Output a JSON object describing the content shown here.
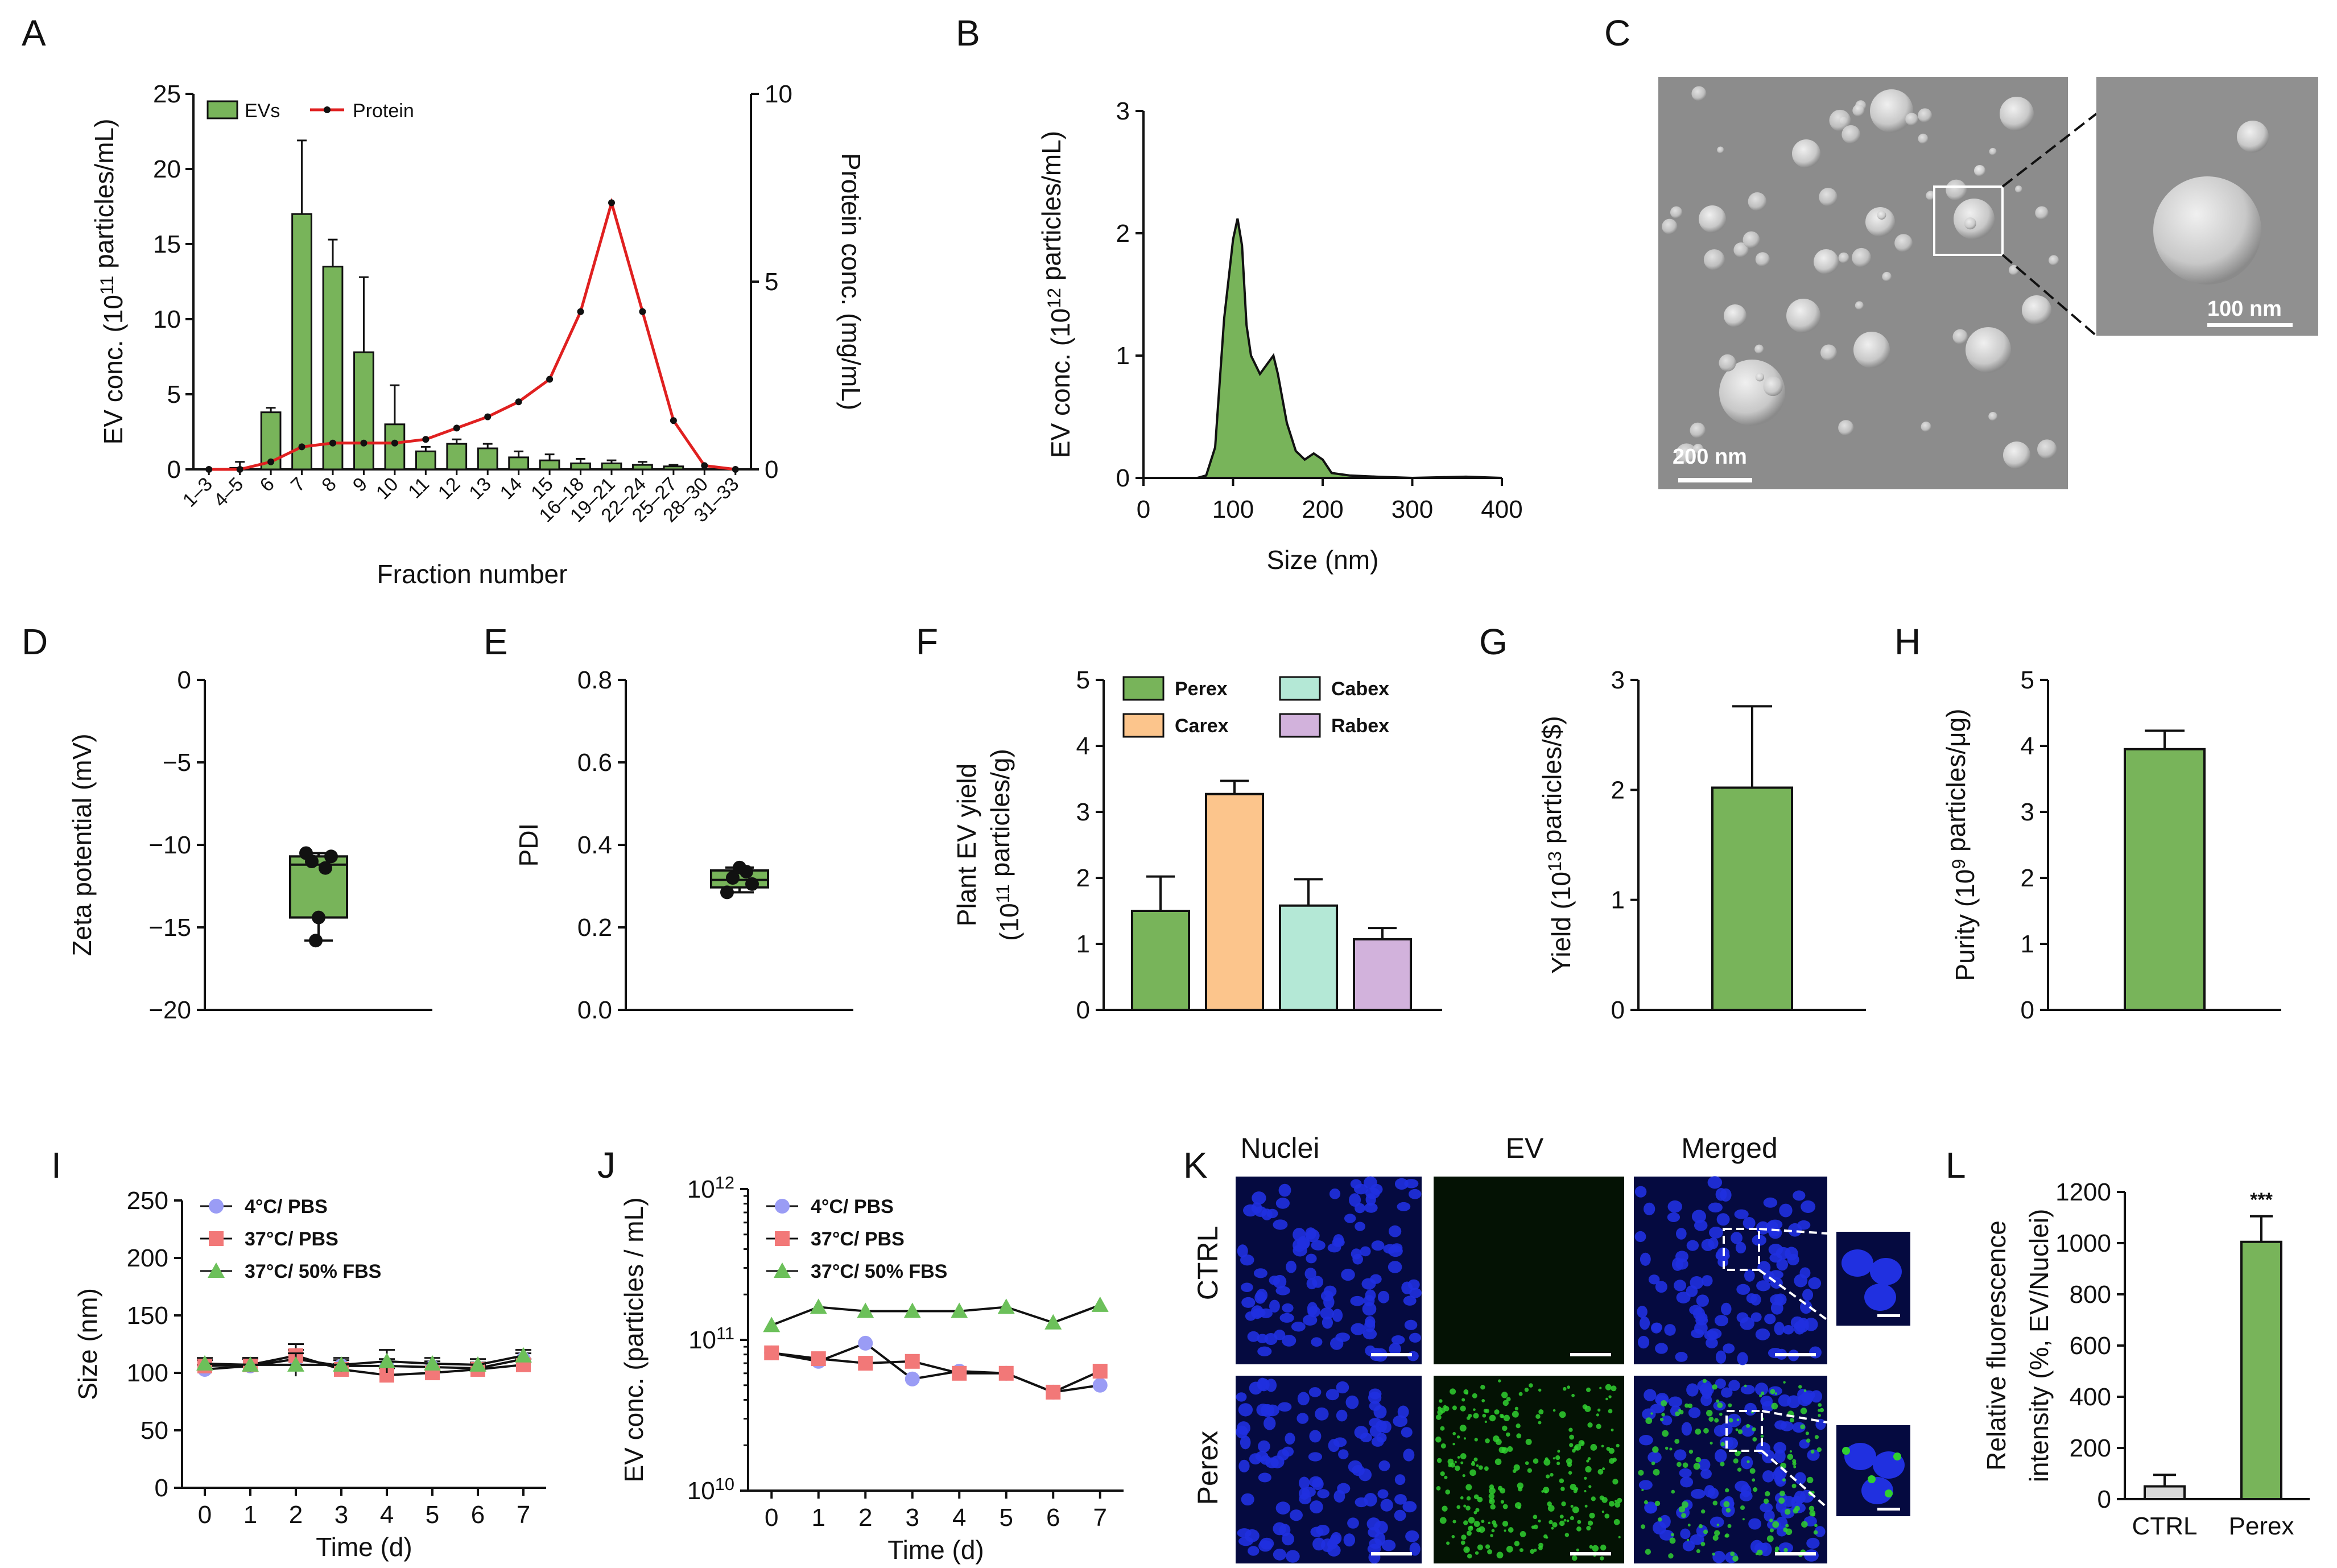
{
  "colors": {
    "green": "#78b45a",
    "green_dark": "#2a6a1a",
    "protein_red": "#e02020",
    "orange": "#fcc58c",
    "teal": "#b4e8d6",
    "purple": "#d2b2dc",
    "blue_marker": "#9a9cf5",
    "red_marker": "#f27878",
    "green_marker": "#6cc05a",
    "ctrl_bar": "#d8d8d8",
    "nuclei_blue": "#2030e0",
    "ev_green": "#30d030"
  },
  "panels": {
    "A": "A",
    "B": "B",
    "C": "C",
    "D": "D",
    "E": "E",
    "F": "F",
    "G": "G",
    "H": "H",
    "I": "I",
    "J": "J",
    "K": "K",
    "L": "L"
  },
  "chart_data": [
    {
      "panel": "A",
      "type": "bar",
      "xlabel": "Fraction number",
      "ylabel": "EV conc. (10^11 particles/mL)",
      "y2label": "Protein conc. (mg/mL)",
      "ylim": [
        0,
        25
      ],
      "y2lim": [
        0,
        10
      ],
      "yticks": [
        "0",
        "5",
        "10",
        "15",
        "20",
        "25"
      ],
      "y2ticks": [
        "0",
        "5",
        "10"
      ],
      "categories": [
        "1–3",
        "4–5",
        "6",
        "7",
        "8",
        "9",
        "10",
        "11",
        "12",
        "13",
        "14",
        "15",
        "16–18",
        "19–21",
        "22–24",
        "25–27",
        "28–30",
        "31–33"
      ],
      "legend": [
        "EVs",
        "Protein"
      ],
      "series": [
        {
          "name": "EVs",
          "type": "bar",
          "values": [
            0,
            0.1,
            3.8,
            17.0,
            13.5,
            7.8,
            3.0,
            1.2,
            1.7,
            1.4,
            0.8,
            0.6,
            0.4,
            0.4,
            0.3,
            0.2,
            0,
            0
          ],
          "errors": [
            0,
            0.4,
            0.3,
            4.9,
            1.8,
            5.0,
            2.6,
            0.3,
            0.3,
            0.3,
            0.4,
            0.4,
            0.3,
            0.2,
            0.2,
            0.1,
            0,
            0
          ]
        },
        {
          "name": "Protein",
          "type": "line",
          "values": [
            0.0,
            0.0,
            0.2,
            0.6,
            0.7,
            0.7,
            0.7,
            0.8,
            1.1,
            1.4,
            1.8,
            2.4,
            4.2,
            7.1,
            4.2,
            1.3,
            0.1,
            0.0
          ]
        }
      ]
    },
    {
      "panel": "B",
      "type": "area",
      "xlabel": "Size (nm)",
      "ylabel": "EV conc. (10^12 particles/mL)",
      "xlim": [
        0,
        400
      ],
      "ylim": [
        0,
        3
      ],
      "xticks": [
        "0",
        "100",
        "200",
        "300",
        "400"
      ],
      "yticks": [
        "0",
        "1",
        "2",
        "3"
      ],
      "x": [
        60,
        70,
        80,
        90,
        100,
        105,
        110,
        115,
        120,
        130,
        140,
        145,
        150,
        160,
        170,
        180,
        190,
        200,
        210,
        230,
        260,
        300,
        360,
        400
      ],
      "y": [
        0,
        0.02,
        0.25,
        1.3,
        1.95,
        2.12,
        1.9,
        1.25,
        1.0,
        0.85,
        0.95,
        1.0,
        0.85,
        0.45,
        0.22,
        0.15,
        0.2,
        0.15,
        0.04,
        0.02,
        0.01,
        0.0,
        0.01,
        0.0
      ]
    },
    {
      "panel": "D",
      "type": "box",
      "ylabel": "Zeta potential (mV)",
      "ylim": [
        -20,
        0
      ],
      "yticks": [
        "0",
        "−5",
        "−10",
        "−15",
        "−20"
      ],
      "q1": -14.4,
      "median": -11.2,
      "q3": -10.7,
      "min": -15.8,
      "max": -10.5,
      "points": [
        -10.5,
        -10.7,
        -11.0,
        -11.4,
        -14.4,
        -15.8
      ]
    },
    {
      "panel": "E",
      "type": "box",
      "ylabel": "PDI",
      "ylim": [
        0,
        0.8
      ],
      "yticks": [
        "0.0",
        "0.2",
        "0.4",
        "0.6",
        "0.8"
      ],
      "q1": 0.297,
      "median": 0.315,
      "q3": 0.338,
      "min": 0.285,
      "max": 0.345,
      "points": [
        0.285,
        0.305,
        0.32,
        0.335,
        0.345
      ]
    },
    {
      "panel": "F",
      "type": "bar",
      "ylabel": "Plant EV yield",
      "ylabel2": "(10^11 particles/g)",
      "ylim": [
        0,
        5
      ],
      "yticks": [
        "0",
        "1",
        "2",
        "3",
        "4",
        "5"
      ],
      "categories": [
        "Perex",
        "Carex",
        "Cabex",
        "Rabex"
      ],
      "legend": [
        "Perex",
        "Carex",
        "Cabex",
        "Rabex"
      ],
      "values": [
        1.5,
        3.27,
        1.58,
        1.07
      ],
      "errors": [
        0.52,
        0.2,
        0.4,
        0.17
      ]
    },
    {
      "panel": "G",
      "type": "bar",
      "ylabel": "Yield (10^13 particles/$)",
      "ylim": [
        0,
        3
      ],
      "yticks": [
        "0",
        "1",
        "2",
        "3"
      ],
      "values": [
        2.02
      ],
      "errors": [
        0.74
      ]
    },
    {
      "panel": "H",
      "type": "bar",
      "ylabel": "Purity (10^9 particles/μg)",
      "ylim": [
        0,
        5
      ],
      "yticks": [
        "0",
        "1",
        "2",
        "3",
        "4",
        "5"
      ],
      "values": [
        3.95
      ],
      "errors": [
        0.28
      ]
    },
    {
      "panel": "I",
      "type": "line",
      "xlabel": "Time (d)",
      "ylabel": "Size (nm)",
      "xlim": [
        -0.5,
        7.5
      ],
      "ylim": [
        0,
        250
      ],
      "xticks": [
        "0",
        "1",
        "2",
        "3",
        "4",
        "5",
        "6",
        "7"
      ],
      "yticks": [
        "0",
        "50",
        "100",
        "150",
        "200",
        "250"
      ],
      "x": [
        0,
        1,
        2,
        3,
        4,
        5,
        6,
        7
      ],
      "series": [
        {
          "name": "4°C/ PBS",
          "values": [
            103,
            106,
            112,
            106,
            106,
            105,
            104,
            112
          ],
          "errors": [
            4,
            6,
            8,
            5,
            6,
            5,
            5,
            5
          ]
        },
        {
          "name": "37°C/ PBS",
          "values": [
            106,
            107,
            115,
            103,
            98,
            100,
            103,
            107
          ],
          "errors": [
            5,
            6,
            10,
            5,
            6,
            5,
            4,
            5
          ]
        },
        {
          "name": "37°C/ 50% FBS",
          "values": [
            108,
            107,
            107,
            107,
            110,
            108,
            107,
            115
          ],
          "errors": [
            5,
            6,
            10,
            6,
            10,
            5,
            5,
            5
          ]
        }
      ]
    },
    {
      "panel": "J",
      "type": "line",
      "xlabel": "Time (d)",
      "ylabel": "EV conc. (particles / mL)",
      "yscale": "log",
      "xlim": [
        -0.5,
        7.5
      ],
      "ylim": [
        10000000000.0,
        1000000000000.0
      ],
      "xticks": [
        "0",
        "1",
        "2",
        "3",
        "4",
        "5",
        "6",
        "7"
      ],
      "yticks": [
        "10^10",
        "10^11",
        "10^12"
      ],
      "x": [
        0,
        1,
        2,
        3,
        4,
        5,
        6,
        7
      ],
      "series": [
        {
          "name": "4°C/ PBS",
          "values": [
            82000000000.0,
            72000000000.0,
            95000000000.0,
            55000000000.0,
            62000000000.0,
            60000000000.0,
            45000000000.0,
            50000000000.0
          ]
        },
        {
          "name": "37°C/ PBS",
          "values": [
            82000000000.0,
            75000000000.0,
            70000000000.0,
            72000000000.0,
            60000000000.0,
            60000000000.0,
            45000000000.0,
            62000000000.0
          ]
        },
        {
          "name": "37°C/ 50% FBS",
          "values": [
            125000000000.0,
            165000000000.0,
            155000000000.0,
            155000000000.0,
            155000000000.0,
            165000000000.0,
            130000000000.0,
            170000000000.0
          ]
        }
      ]
    },
    {
      "panel": "L",
      "type": "bar",
      "ylabel": "Relative fluorescence",
      "ylabel2": "intensity (%, EV/Nuclei)",
      "ylim": [
        0,
        1200
      ],
      "yticks": [
        "0",
        "200",
        "400",
        "600",
        "800",
        "1000",
        "1200"
      ],
      "categories": [
        "CTRL",
        "Perex"
      ],
      "values": [
        50,
        1005
      ],
      "errors": [
        45,
        100
      ],
      "annotation": "***"
    }
  ],
  "images": {
    "c_scale_main": "200 nm",
    "c_scale_inset": "100 nm",
    "k_cols": [
      "Nuclei",
      "EV",
      "Merged"
    ],
    "k_rows": [
      "CTRL",
      "Perex"
    ]
  }
}
